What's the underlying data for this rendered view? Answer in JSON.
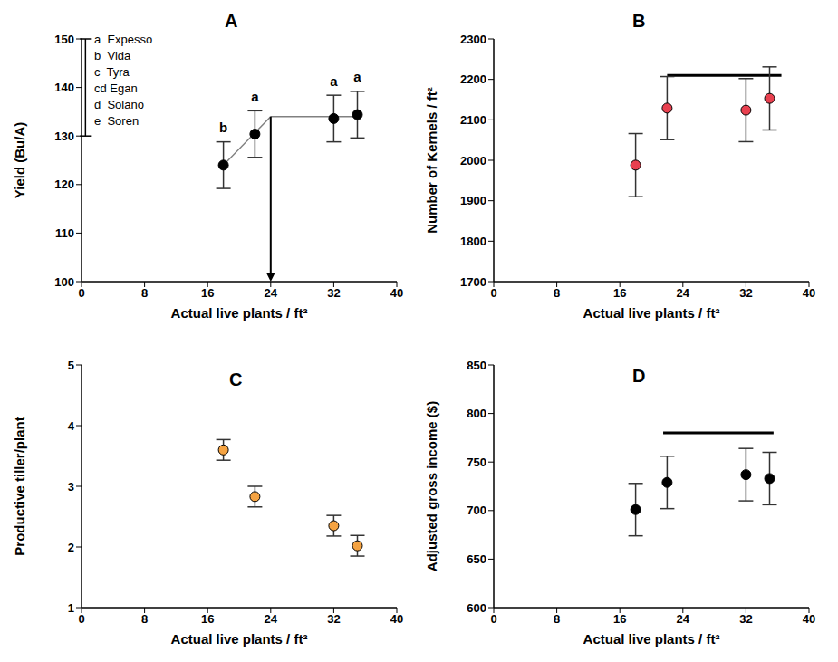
{
  "chart_data": [
    {
      "type": "scatter",
      "title": "A",
      "x_label": "Actual live plants / ft²",
      "y_label": "Yield (Bu/A)",
      "x": [
        18,
        22,
        32,
        35
      ],
      "values": [
        124,
        130.4,
        133.6,
        134.4
      ],
      "error": [
        4.8,
        4.8,
        4.8,
        4.8
      ],
      "color": "#000000",
      "marker": "circle",
      "xlim": [
        0,
        40
      ],
      "xticks": [
        0,
        8,
        16,
        24,
        32,
        40
      ],
      "ylim": [
        100,
        150
      ],
      "yticks": [
        100,
        110,
        120,
        130,
        140,
        150
      ],
      "point_labels": [
        "b",
        "a",
        "a",
        "a"
      ],
      "fit_line": {
        "x": [
          18,
          24,
          35
        ],
        "y": [
          124,
          134,
          134
        ]
      },
      "arrow": {
        "x": 24,
        "y": [
          134,
          100
        ]
      },
      "annotation": {
        "bar_x": 0.5,
        "bar_y": [
          130,
          150
        ],
        "labels": [
          "a  Expesso",
          "b  Vida",
          "c  Tyra",
          "cd Egan",
          "d  Solano",
          "e  Soren"
        ]
      }
    },
    {
      "type": "scatter",
      "title": "B",
      "x_label": "Actual live plants / ft²",
      "y_label": "Number of Kernels / ft²",
      "x": [
        18,
        22,
        32,
        35
      ],
      "values": [
        1988,
        2129,
        2124,
        2153
      ],
      "error": [
        78,
        78,
        78,
        78
      ],
      "color": "#e8404f",
      "marker": "circle",
      "xlim": [
        0,
        40
      ],
      "xticks": [
        0,
        8,
        16,
        24,
        32,
        40
      ],
      "ylim": [
        1700,
        2300
      ],
      "yticks": [
        1700,
        1800,
        1900,
        2000,
        2100,
        2200,
        2300
      ],
      "bracket": {
        "x": [
          22,
          36.5
        ],
        "y": 2210
      }
    },
    {
      "type": "scatter",
      "title": "C",
      "x_label": "Actual live plants / ft²",
      "y_label": "Productive tiller/plant",
      "x": [
        18,
        22,
        32,
        35
      ],
      "values": [
        3.6,
        2.83,
        2.35,
        2.02
      ],
      "error": [
        0.17,
        0.17,
        0.17,
        0.17
      ],
      "color": "#f5a342",
      "marker": "circle",
      "xlim": [
        0,
        40
      ],
      "xticks": [
        0,
        8,
        16,
        24,
        32,
        40
      ],
      "ylim": [
        1,
        5
      ],
      "yticks": [
        1,
        2,
        3,
        4,
        5
      ]
    },
    {
      "type": "scatter",
      "title": "D",
      "x_label": "Actual live plants / ft²",
      "y_label": "Adjusted gross income ($)",
      "x": [
        18,
        22,
        32,
        35
      ],
      "values": [
        701,
        729,
        737,
        733
      ],
      "error": [
        27,
        27,
        27,
        27
      ],
      "color": "#000000",
      "marker": "circle",
      "xlim": [
        0,
        40
      ],
      "xticks": [
        0,
        8,
        16,
        24,
        32,
        40
      ],
      "ylim": [
        600,
        850
      ],
      "yticks": [
        600,
        650,
        700,
        750,
        800,
        850
      ],
      "bracket": {
        "x": [
          21.5,
          35.5
        ],
        "y": 780
      }
    }
  ]
}
